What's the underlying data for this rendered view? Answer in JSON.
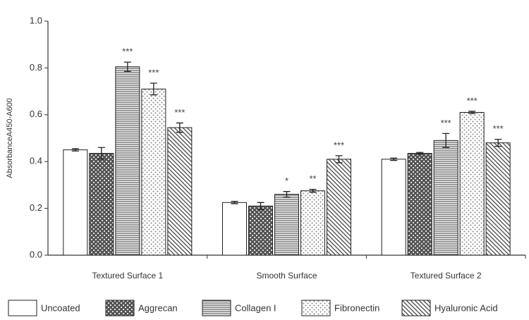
{
  "chart_data": {
    "type": "bar",
    "ylabel": "AbsorbanceA450-A600",
    "categories": [
      "Textured Surface 1",
      "Smooth Surface",
      "Textured Surface 2"
    ],
    "ylim": [
      0,
      1
    ],
    "yticks": [
      {
        "value": 0,
        "label": "0.0"
      },
      0.2,
      0.4,
      0.6,
      0.8,
      {
        "value": 1,
        "label": "1.0"
      }
    ],
    "series": [
      {
        "name": "Uncoated",
        "color": "#ffffff",
        "values": [
          0.45,
          0.225,
          0.41
        ],
        "errors": [
          0.005,
          0.005,
          0.005
        ],
        "annotations": [
          null,
          null,
          null
        ]
      },
      {
        "name": "Aggrecan",
        "color": "#555555",
        "values": [
          0.435,
          0.21,
          0.435
        ],
        "errors": [
          0.025,
          0.015,
          0.004
        ],
        "annotations": [
          null,
          null,
          null
        ]
      },
      {
        "name": "Collagen I",
        "color": "#666666",
        "values": [
          0.805,
          0.26,
          0.49
        ],
        "errors": [
          0.02,
          0.012,
          0.03
        ],
        "annotations": [
          "***",
          "*",
          "***"
        ]
      },
      {
        "name": "Fibronectin",
        "color": "#888888",
        "values": [
          0.71,
          0.275,
          0.61
        ],
        "errors": [
          0.025,
          0.006,
          0.005
        ],
        "annotations": [
          "***",
          "**",
          "***"
        ]
      },
      {
        "name": "Hyaluronic Acid",
        "color": "#444444",
        "values": [
          0.545,
          0.41,
          0.48
        ],
        "errors": [
          0.02,
          0.015,
          0.015
        ],
        "annotations": [
          "***",
          "***",
          "***"
        ]
      }
    ]
  }
}
